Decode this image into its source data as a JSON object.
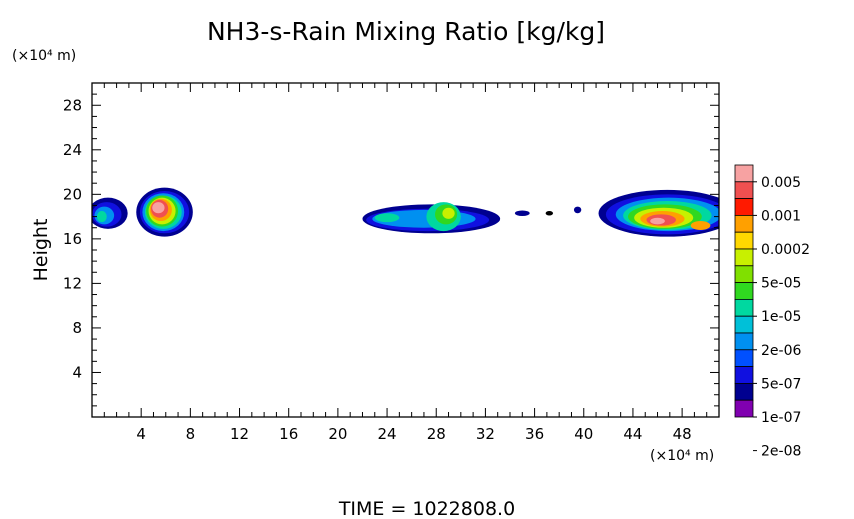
{
  "chart_data": {
    "type": "heatmap",
    "title": "NH3-s-Rain Mixing Ratio [kg/kg]",
    "ylabel": "Height",
    "y_unit_label": "(×10⁴ m)",
    "x_unit_label": "(×10⁴ m)",
    "xlim": [
      0,
      51
    ],
    "ylim": [
      0,
      30
    ],
    "x_ticks": [
      "4",
      "8",
      "12",
      "16",
      "20",
      "24",
      "28",
      "32",
      "36",
      "40",
      "44",
      "48"
    ],
    "y_ticks": [
      "28",
      "24",
      "20",
      "16",
      "12",
      "8",
      "4"
    ],
    "colorbar": {
      "labels": [
        "0.005",
        "0.001",
        "0.0002",
        "5e-05",
        "1e-05",
        "2e-06",
        "5e-07",
        "1e-07",
        "2e-08"
      ],
      "colors": [
        "#f7a2a2",
        "#f05050",
        "#ff1a00",
        "#ffa000",
        "#ffd800",
        "#c8f000",
        "#80e000",
        "#30d820",
        "#00d8a0",
        "#00c0d8",
        "#0090f0",
        "#0050ff",
        "#1010e0",
        "#000090",
        "#8000b0"
      ]
    },
    "regions": [
      {
        "name": "left-edge",
        "x": [
          0,
          2.6
        ],
        "y": [
          16.5,
          19.5
        ],
        "peak": "1e-07"
      },
      {
        "name": "cell-5",
        "x": [
          3.8,
          8.0
        ],
        "y": [
          16.3,
          20.6
        ],
        "peak": "0.005"
      },
      {
        "name": "cell-27",
        "x": [
          22.0,
          33.5
        ],
        "y": [
          16.0,
          19.5
        ],
        "peak": "5e-05"
      },
      {
        "name": "cell-46",
        "x": [
          41.5,
          51
        ],
        "y": [
          16.0,
          20.4
        ],
        "peak": "0.001"
      }
    ],
    "time_label": "TIME  =  1022808.0"
  }
}
